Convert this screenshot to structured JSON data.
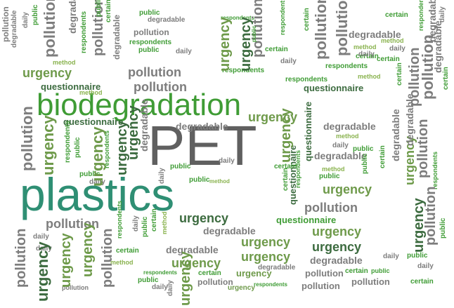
{
  "colors": {
    "dark_green": "#3c6b3f",
    "mid_green": "#6e9a4a",
    "teal": "#2f8f74",
    "bright_green": "#3f9c35",
    "gray": "#7d7d7d",
    "dark_gray": "#606060",
    "light_gray": "#a0a0a0",
    "lime": "#8ab34f"
  },
  "words": [
    "biodegradation",
    "PET",
    "plastics",
    "questionnaire",
    "urgency",
    "pollution",
    "degradable",
    "respondents",
    "public",
    "certain",
    "method",
    "daily"
  ]
}
